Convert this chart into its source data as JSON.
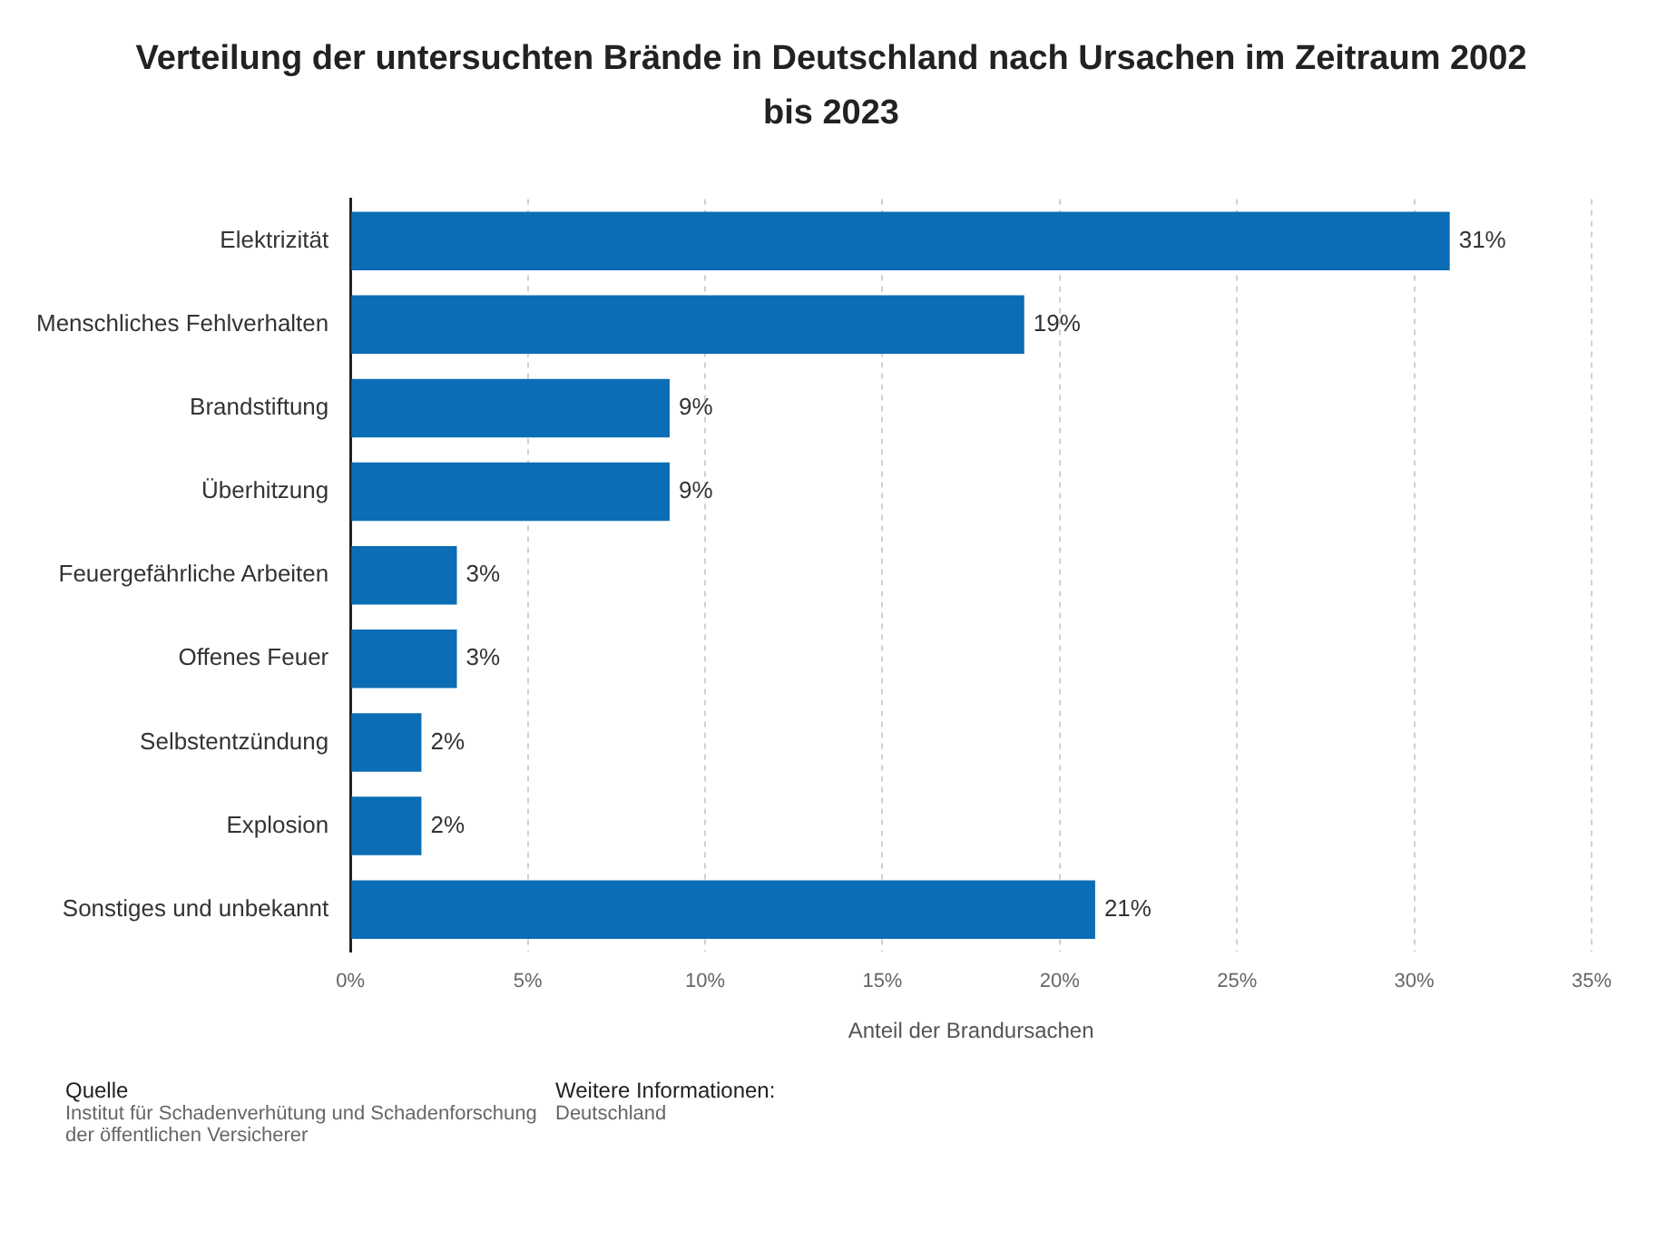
{
  "chart_data": {
    "type": "bar",
    "orientation": "horizontal",
    "title": "Verteilung der untersuchten Brände in Deutschland nach Ursachen im Zeitraum 2002 bis 2023",
    "xlabel": "Anteil der Brandursachen",
    "categories": [
      "Elektrizität",
      "Menschliches Fehlverhalten",
      "Brandstiftung",
      "Überhitzung",
      "Feuergefährliche Arbeiten",
      "Offenes Feuer",
      "Selbstentzündung",
      "Explosion",
      "Sonstiges und unbekannt"
    ],
    "values": [
      31,
      19,
      9,
      9,
      3,
      3,
      2,
      2,
      21
    ],
    "value_labels": [
      "31%",
      "19%",
      "9%",
      "9%",
      "3%",
      "3%",
      "2%",
      "2%",
      "21%"
    ],
    "color": "#0b6db5",
    "xlim": [
      0,
      35
    ],
    "xticks": [
      {
        "value": 0,
        "label": "0%"
      },
      {
        "value": 5,
        "label": "5%"
      },
      {
        "value": 10,
        "label": "10%"
      },
      {
        "value": 15,
        "label": "15%"
      },
      {
        "value": 20,
        "label": "20%"
      },
      {
        "value": 25,
        "label": "25%"
      },
      {
        "value": 30,
        "label": "30%"
      },
      {
        "value": 35,
        "label": "35%"
      }
    ],
    "grid": "x",
    "legend": false,
    "annotations": [
      "Quelle",
      "Institut für Schadenverhütung und Schadenforschung der öffentlichen Versicherer",
      "Weitere Informationen:",
      "Deutschland"
    ]
  }
}
